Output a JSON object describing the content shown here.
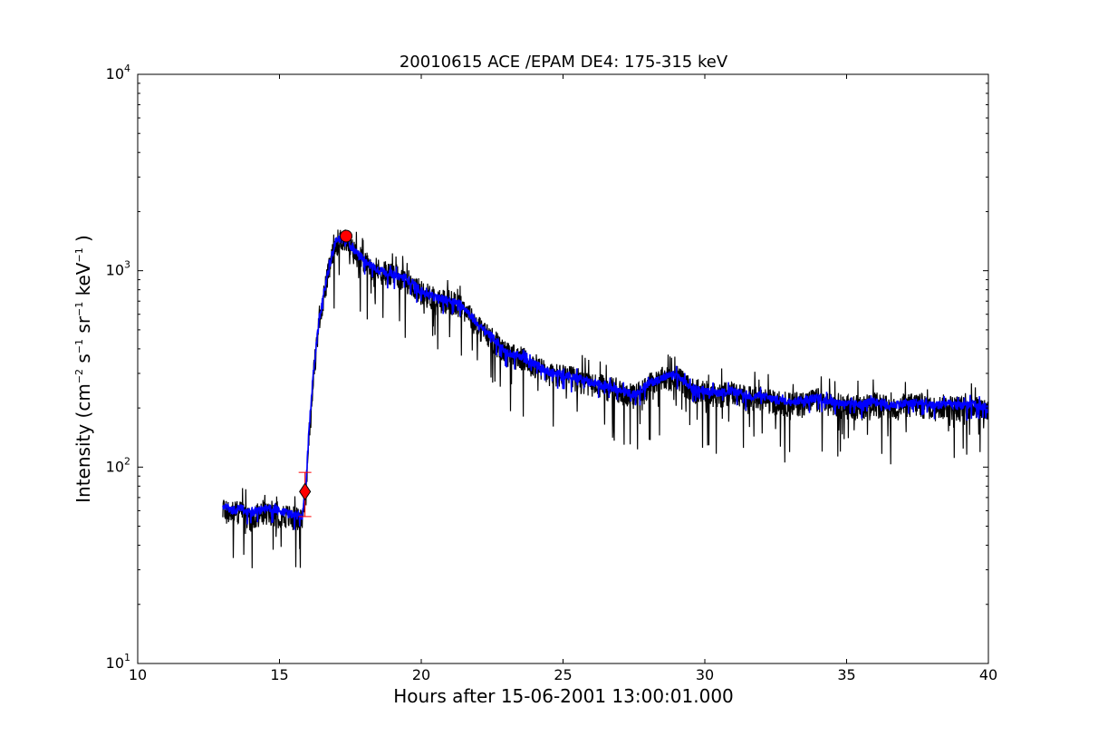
{
  "chart_data": {
    "type": "line",
    "title": "20010615 ACE /EPAM DE4: 175-315 keV",
    "xlabel": "Hours after 15-06-2001 13:00:01.000",
    "ylabel": {
      "prefix": "Intensity (cm",
      "sup1": "−2",
      "s": " s",
      "sup2": "−1",
      "sr": " sr",
      "sup3": "−1",
      "kev": " keV",
      "sup4": "−1",
      "suffix": " )"
    },
    "xlim": [
      10,
      40
    ],
    "ylim": [
      10,
      10000
    ],
    "yscale": "log",
    "grid": false,
    "x_ticks": [
      10,
      15,
      20,
      25,
      30,
      35,
      40
    ],
    "y_ticks": [
      {
        "value": 10,
        "base": "10",
        "exp": "1"
      },
      {
        "value": 100,
        "base": "10",
        "exp": "2"
      },
      {
        "value": 1000,
        "base": "10",
        "exp": "3"
      },
      {
        "value": 10000,
        "base": "10",
        "exp": "4"
      }
    ],
    "series": [
      {
        "color": "#000000",
        "style": "raw",
        "x": [
          13.0,
          13.3,
          13.6,
          14.0,
          14.5,
          15.0,
          15.5,
          15.8,
          15.92,
          16.05,
          16.2,
          16.4,
          16.6,
          16.8,
          17.0,
          17.2,
          17.4,
          17.6,
          17.8,
          18.0,
          18.5,
          19.0,
          19.5,
          20.0,
          20.5,
          21.0,
          21.5,
          22.0,
          22.5,
          23.0,
          23.5,
          24.0,
          24.5,
          25.0,
          25.5,
          26.0,
          26.5,
          27.0,
          27.5,
          28.0,
          28.5,
          29.0,
          29.5,
          30.0,
          30.5,
          31.0,
          31.5,
          32.0,
          32.5,
          33.0,
          33.5,
          34.0,
          34.5,
          35.0,
          35.5,
          36.0,
          36.5,
          37.0,
          37.5,
          38.0,
          38.5,
          39.0,
          39.5,
          40.0
        ],
        "y": [
          62,
          58,
          60,
          55,
          60,
          58,
          55,
          54,
          75,
          150,
          300,
          550,
          800,
          1100,
          1400,
          1450,
          1400,
          1250,
          1200,
          1100,
          1000,
          950,
          900,
          780,
          720,
          700,
          650,
          520,
          450,
          380,
          360,
          330,
          300,
          290,
          280,
          265,
          255,
          240,
          230,
          260,
          280,
          290,
          250,
          240,
          235,
          240,
          225,
          225,
          215,
          210,
          215,
          220,
          210,
          205,
          205,
          210,
          200,
          205,
          210,
          200,
          205,
          200,
          205,
          195
        ],
        "noise": 0.6
      },
      {
        "color": "#0000ff",
        "style": "smoothed",
        "x": [
          13.0,
          13.3,
          13.6,
          14.0,
          14.5,
          15.0,
          15.5,
          15.8,
          15.92,
          16.05,
          16.2,
          16.4,
          16.6,
          16.8,
          17.0,
          17.2,
          17.4,
          17.6,
          17.8,
          18.0,
          18.5,
          19.0,
          19.5,
          20.0,
          20.5,
          21.0,
          21.5,
          22.0,
          22.5,
          23.0,
          23.5,
          24.0,
          24.5,
          25.0,
          25.5,
          26.0,
          26.5,
          27.0,
          27.5,
          28.0,
          28.5,
          29.0,
          29.5,
          30.0,
          30.5,
          31.0,
          31.5,
          32.0,
          32.5,
          33.0,
          33.5,
          34.0,
          34.5,
          35.0,
          35.5,
          36.0,
          36.5,
          37.0,
          37.5,
          38.0,
          38.5,
          39.0,
          39.5,
          40.0
        ],
        "y": [
          64,
          60,
          62,
          58,
          62,
          60,
          57,
          56,
          78,
          160,
          310,
          560,
          820,
          1120,
          1420,
          1470,
          1420,
          1270,
          1210,
          1120,
          1010,
          960,
          910,
          790,
          730,
          710,
          660,
          530,
          460,
          385,
          365,
          335,
          305,
          295,
          285,
          270,
          260,
          245,
          235,
          265,
          285,
          295,
          255,
          245,
          240,
          245,
          230,
          230,
          220,
          215,
          220,
          225,
          215,
          210,
          210,
          215,
          205,
          210,
          215,
          205,
          210,
          205,
          210,
          200
        ],
        "noise": 0.2
      }
    ],
    "markers": [
      {
        "shape": "circle",
        "color": "#ff0000",
        "x": 17.35,
        "y": 1500
      },
      {
        "shape": "diamond",
        "color": "#ff0000",
        "x": 15.9,
        "y": 75,
        "error_low": 56,
        "error_high": 94
      }
    ]
  }
}
